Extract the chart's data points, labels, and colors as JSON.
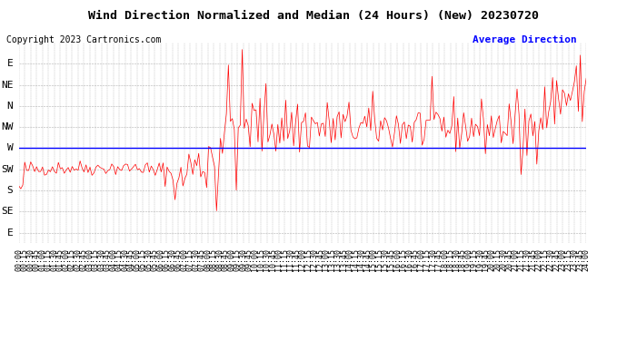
{
  "title": "Wind Direction Normalized and Median (24 Hours) (New) 20230720",
  "copyright": "Copyright 2023 Cartronics.com",
  "legend_label": "Average Direction",
  "legend_label_color": "blue",
  "background_color": "#ffffff",
  "grid_color": "#b0b0b0",
  "line_color": "#ff0000",
  "avg_line_color": "#0000ff",
  "avg_line_value": 180,
  "y_ticks": [
    360,
    315,
    270,
    225,
    180,
    135,
    90,
    45,
    0
  ],
  "y_tick_labels": [
    "E",
    "NE",
    "N",
    "NW",
    "W",
    "SW",
    "S",
    "SE",
    "E"
  ],
  "ylim": [
    -22,
    405
  ],
  "title_fontsize": 9.5,
  "tick_fontsize": 6,
  "copyright_fontsize": 7
}
